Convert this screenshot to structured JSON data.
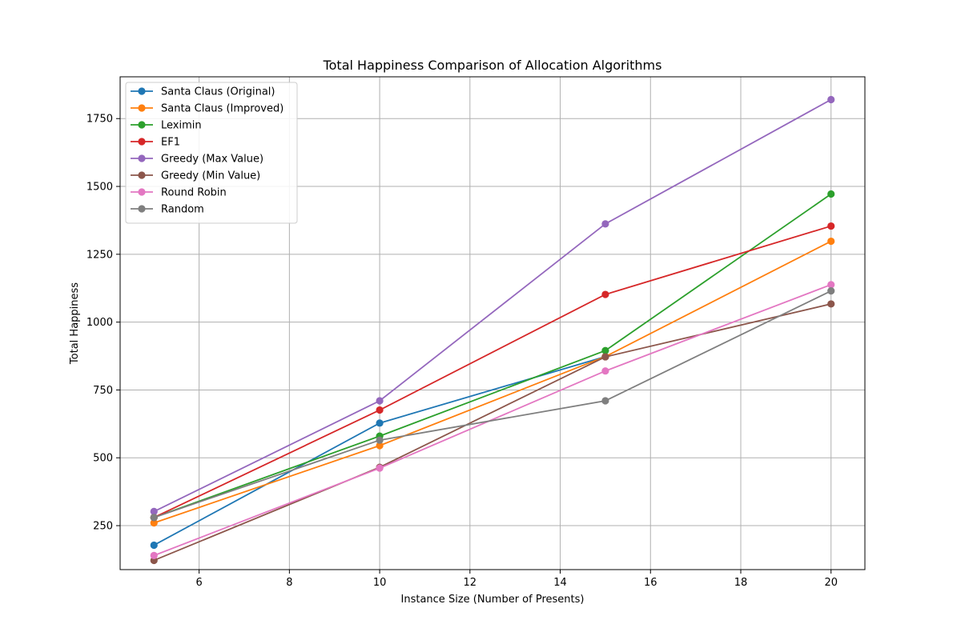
{
  "chart_data": {
    "type": "line",
    "title": "Total Happiness Comparison of Allocation Algorithms",
    "xlabel": "Instance Size (Number of Presents)",
    "ylabel": "Total Happiness",
    "x": [
      5,
      10,
      15,
      20
    ],
    "xlim": [
      4.25,
      20.75
    ],
    "ylim": [
      88,
      1904
    ],
    "xticks": [
      6,
      8,
      10,
      12,
      14,
      16,
      18,
      20
    ],
    "yticks": [
      250,
      500,
      750,
      1000,
      1250,
      1500,
      1750
    ],
    "grid": true,
    "legend_position": "top-left",
    "series": [
      {
        "name": "Santa Claus (Original)",
        "color": "#1f77b4",
        "values": [
          178,
          628,
          873,
          null
        ],
        "x": [
          5,
          10,
          15,
          null
        ]
      },
      {
        "name": "Santa Claus (Improved)",
        "color": "#ff7f0e",
        "values": [
          260,
          545,
          873,
          1298
        ]
      },
      {
        "name": "Leximin",
        "color": "#2ca02c",
        "values": [
          280,
          580,
          895,
          1472
        ]
      },
      {
        "name": "EF1",
        "color": "#d62728",
        "values": [
          280,
          676,
          1102,
          1354
        ]
      },
      {
        "name": "Greedy (Max Value)",
        "color": "#9467bd",
        "values": [
          302,
          710,
          1362,
          1820
        ]
      },
      {
        "name": "Greedy (Min Value)",
        "color": "#8c564b",
        "values": [
          122,
          465,
          872,
          1067
        ]
      },
      {
        "name": "Round Robin",
        "color": "#e377c2",
        "values": [
          140,
          462,
          820,
          1138
        ]
      },
      {
        "name": "Random",
        "color": "#7f7f7f",
        "values": [
          280,
          565,
          710,
          1115
        ]
      }
    ]
  }
}
